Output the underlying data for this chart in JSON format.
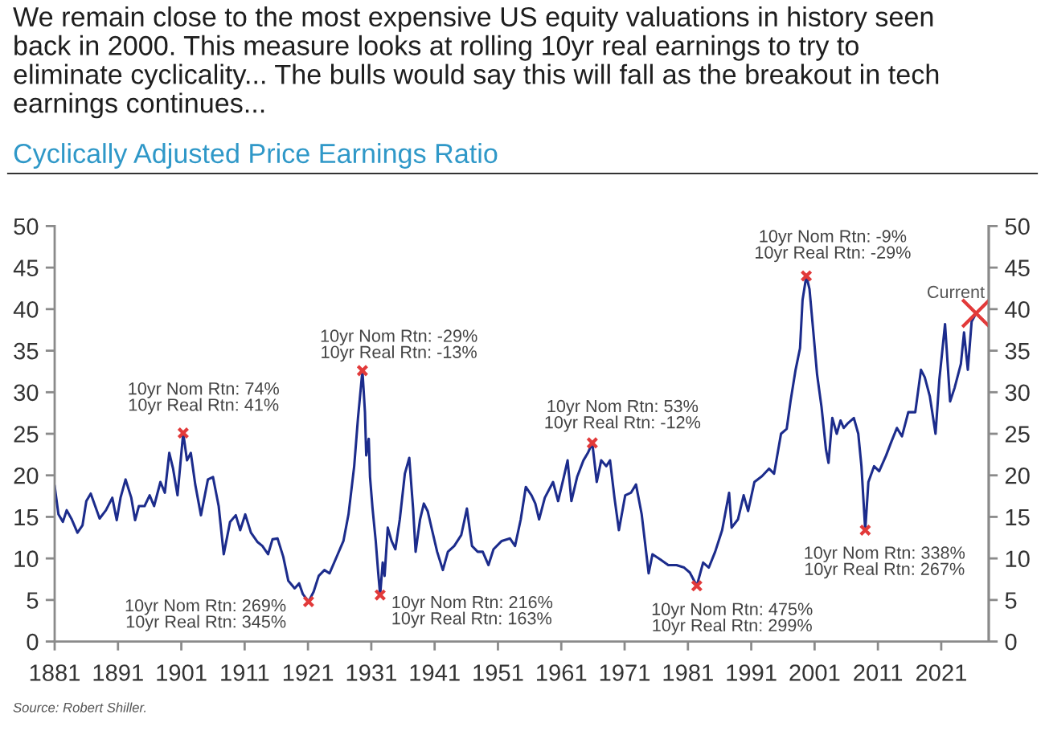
{
  "chart_data": {
    "type": "line",
    "title": "We remain close to the most expensive US equity valuations in history seen back in 2000. This measure looks at rolling 10yr real earnings to try to eliminate cyclicality... The bulls would say this will fall as the breakout in tech earnings continues...",
    "subtitle": "Cyclically Adjusted Price Earnings Ratio",
    "xlim": [
      1881,
      2028.5
    ],
    "xticks": [
      1881,
      1891,
      1901,
      1911,
      1921,
      1931,
      1941,
      1951,
      1961,
      1971,
      1981,
      1991,
      2001,
      2011,
      2021
    ],
    "ylim": [
      0,
      50
    ],
    "yticks": [
      0,
      5,
      10,
      15,
      20,
      25,
      30,
      35,
      40,
      45,
      50
    ],
    "y2lim": [
      0,
      50
    ],
    "y2ticks": [
      0,
      5,
      10,
      15,
      20,
      25,
      30,
      35,
      40,
      45,
      50
    ],
    "grid": false,
    "legend": false,
    "annotations": [
      {
        "text": "10yr Nom Rtn: 74%\n10yr Real Rtn: 41%",
        "x": 1901.3,
        "y": 25.1
      },
      {
        "text": "10yr Nom Rtn: 269%\n10yr Real Rtn: 345%",
        "x": 1921.1,
        "y": 4.8
      },
      {
        "text": "10yr Nom Rtn: -29%\n10yr Real Rtn: -13%",
        "x": 1929.6,
        "y": 32.6
      },
      {
        "text": "10yr Nom Rtn: 216%\n10yr Real Rtn: 163%",
        "x": 1932.4,
        "y": 5.6
      },
      {
        "text": "10yr Nom Rtn: 53%\n10yr Real Rtn: -12%",
        "x": 1965.9,
        "y": 23.9
      },
      {
        "text": "10yr Nom Rtn: 475%\n10yr Real Rtn: 299%",
        "x": 1982.4,
        "y": 6.7
      },
      {
        "text": "10yr Nom Rtn: -9%\n10yr Real Rtn: -29%",
        "x": 1999.7,
        "y": 44.0
      },
      {
        "text": "10yr Nom Rtn: 338%\n10yr Real Rtn: 267%",
        "x": 2009.0,
        "y": 13.4
      },
      "Source: Robert Shiller."
    ],
    "series": [
      {
        "color": "#1c2c8c",
        "marker": "none",
        "line_style": "solid",
        "x": [
          1881,
          1881.6,
          1882.3,
          1882.9,
          1883.7,
          1884.6,
          1885.4,
          1886,
          1886.7,
          1887.4,
          1888.1,
          1889.1,
          1890.1,
          1890.8,
          1891.4,
          1892.2,
          1893.1,
          1893.7,
          1894.3,
          1895.2,
          1896,
          1896.7,
          1897.7,
          1898.4,
          1899.1,
          1899.7,
          1900.4,
          1901.3,
          1901.9,
          1902.5,
          1903.2,
          1904.1,
          1905.2,
          1906,
          1906.9,
          1907.7,
          1908.7,
          1909.6,
          1910.3,
          1911.1,
          1912,
          1913,
          1913.8,
          1914.7,
          1915.4,
          1916.2,
          1917.1,
          1917.9,
          1918.9,
          1919.6,
          1920.2,
          1921.1,
          1921.9,
          1922.7,
          1923.6,
          1924.4,
          1925.7,
          1926.6,
          1927.4,
          1928.3,
          1928.9,
          1929.6,
          1930,
          1930.2,
          1930.6,
          1930.8,
          1931.2,
          1931.7,
          1932.1,
          1932.4,
          1932.8,
          1933.1,
          1933.6,
          1934.2,
          1934.8,
          1935.5,
          1936.3,
          1937,
          1937.6,
          1938,
          1938.7,
          1939.3,
          1939.9,
          1940.6,
          1941.4,
          1942.3,
          1943.1,
          1944.1,
          1945.2,
          1946.1,
          1946.9,
          1947.8,
          1948.6,
          1949.5,
          1950.3,
          1951.6,
          1952.9,
          1953.7,
          1954.6,
          1955.4,
          1956.3,
          1956.9,
          1957.5,
          1958.4,
          1959.7,
          1960.5,
          1961.4,
          1962,
          1962.6,
          1963.5,
          1964.5,
          1965.2,
          1965.9,
          1966.6,
          1967.3,
          1968.1,
          1968.7,
          1969.4,
          1970.1,
          1971.1,
          1972,
          1972.8,
          1973.7,
          1974.8,
          1975.4,
          1976.6,
          1977.9,
          1979.2,
          1980.4,
          1981.3,
          1982.4,
          1983.4,
          1984.3,
          1985.3,
          1986.4,
          1987.5,
          1987.9,
          1988.9,
          1989.8,
          1990.5,
          1991.5,
          1992.7,
          1993.8,
          1994.6,
          1995.7,
          1996.6,
          1997.2,
          1998,
          1998.7,
          1999.1,
          1999.7,
          2000.2,
          2000.8,
          2001.4,
          2002.1,
          2002.8,
          2003.2,
          2003.8,
          2004.5,
          2005.1,
          2005.6,
          2006.3,
          2007.2,
          2007.9,
          2008.4,
          2009,
          2009.5,
          2010.4,
          2011.2,
          2012.3,
          2013.1,
          2014,
          2014.8,
          2015.8,
          2016.9,
          2017.8,
          2018.4,
          2019.2,
          2020.1,
          2020.7,
          2021.6,
          2022.4,
          2023.1,
          2024.1,
          2024.6,
          2025.2,
          2025.8,
          2026.5
        ],
        "values": [
          18.7,
          15.3,
          14.4,
          15.8,
          14.7,
          13.1,
          14.0,
          16.9,
          17.8,
          16.3,
          14.8,
          15.8,
          17.3,
          14.6,
          17.3,
          19.5,
          17.3,
          14.6,
          16.3,
          16.3,
          17.6,
          16.3,
          19.2,
          17.9,
          22.7,
          20.8,
          17.6,
          25.1,
          21.8,
          22.7,
          18.9,
          15.2,
          19.5,
          19.8,
          16.3,
          10.5,
          14.4,
          15.2,
          13.4,
          15.3,
          13.1,
          12.0,
          11.5,
          10.5,
          12.3,
          12.4,
          10.2,
          7.3,
          6.4,
          7.0,
          5.7,
          4.8,
          6.0,
          7.9,
          8.6,
          8.2,
          10.5,
          12.1,
          15.3,
          21.1,
          26.9,
          32.6,
          27.6,
          22.4,
          24.4,
          19.8,
          16.0,
          12.1,
          8.2,
          5.6,
          9.5,
          7.9,
          13.7,
          12.1,
          11.1,
          14.7,
          20.2,
          22.1,
          16.0,
          10.8,
          14.7,
          16.6,
          15.7,
          13.4,
          10.8,
          8.6,
          10.8,
          11.5,
          12.8,
          16.0,
          11.5,
          10.8,
          10.8,
          9.2,
          11.1,
          12.1,
          12.4,
          11.5,
          14.7,
          18.6,
          17.6,
          16.6,
          14.7,
          17.3,
          19.2,
          16.9,
          19.8,
          21.8,
          16.9,
          19.8,
          21.8,
          22.7,
          23.9,
          19.2,
          21.8,
          21.1,
          21.8,
          17.3,
          13.4,
          17.6,
          17.9,
          18.9,
          15.3,
          8.2,
          10.5,
          9.9,
          9.2,
          9.2,
          8.9,
          8.3,
          6.7,
          9.5,
          8.9,
          10.8,
          13.4,
          17.9,
          13.7,
          14.7,
          17.6,
          15.7,
          19.2,
          19.9,
          20.8,
          20.2,
          25.0,
          25.6,
          28.9,
          32.7,
          35.3,
          41.1,
          44.0,
          42.4,
          37.3,
          32.1,
          28.2,
          23.1,
          21.5,
          26.9,
          25.0,
          26.6,
          25.7,
          26.3,
          26.9,
          25.0,
          21.1,
          13.4,
          19.2,
          21.1,
          20.5,
          22.4,
          24.0,
          25.7,
          24.7,
          27.6,
          27.6,
          32.7,
          31.8,
          29.5,
          25.0,
          31.5,
          38.2,
          28.9,
          30.5,
          33.4,
          37.2,
          32.7,
          38.5,
          39.5
        ]
      },
      {
        "type": "scatter",
        "color": "#e23a3a",
        "marker": "cross",
        "x": [
          1901.3,
          1921.1,
          1929.6,
          1932.4,
          1965.9,
          1982.4,
          1999.7,
          2009.0
        ],
        "values": [
          25.1,
          4.8,
          32.6,
          5.6,
          23.9,
          6.7,
          44.0,
          13.4
        ]
      },
      {
        "type": "scatter",
        "name": "Current",
        "color": "#e23a3a",
        "marker": "cross",
        "x": [
          2026.5
        ],
        "values": [
          39.5
        ]
      }
    ]
  }
}
